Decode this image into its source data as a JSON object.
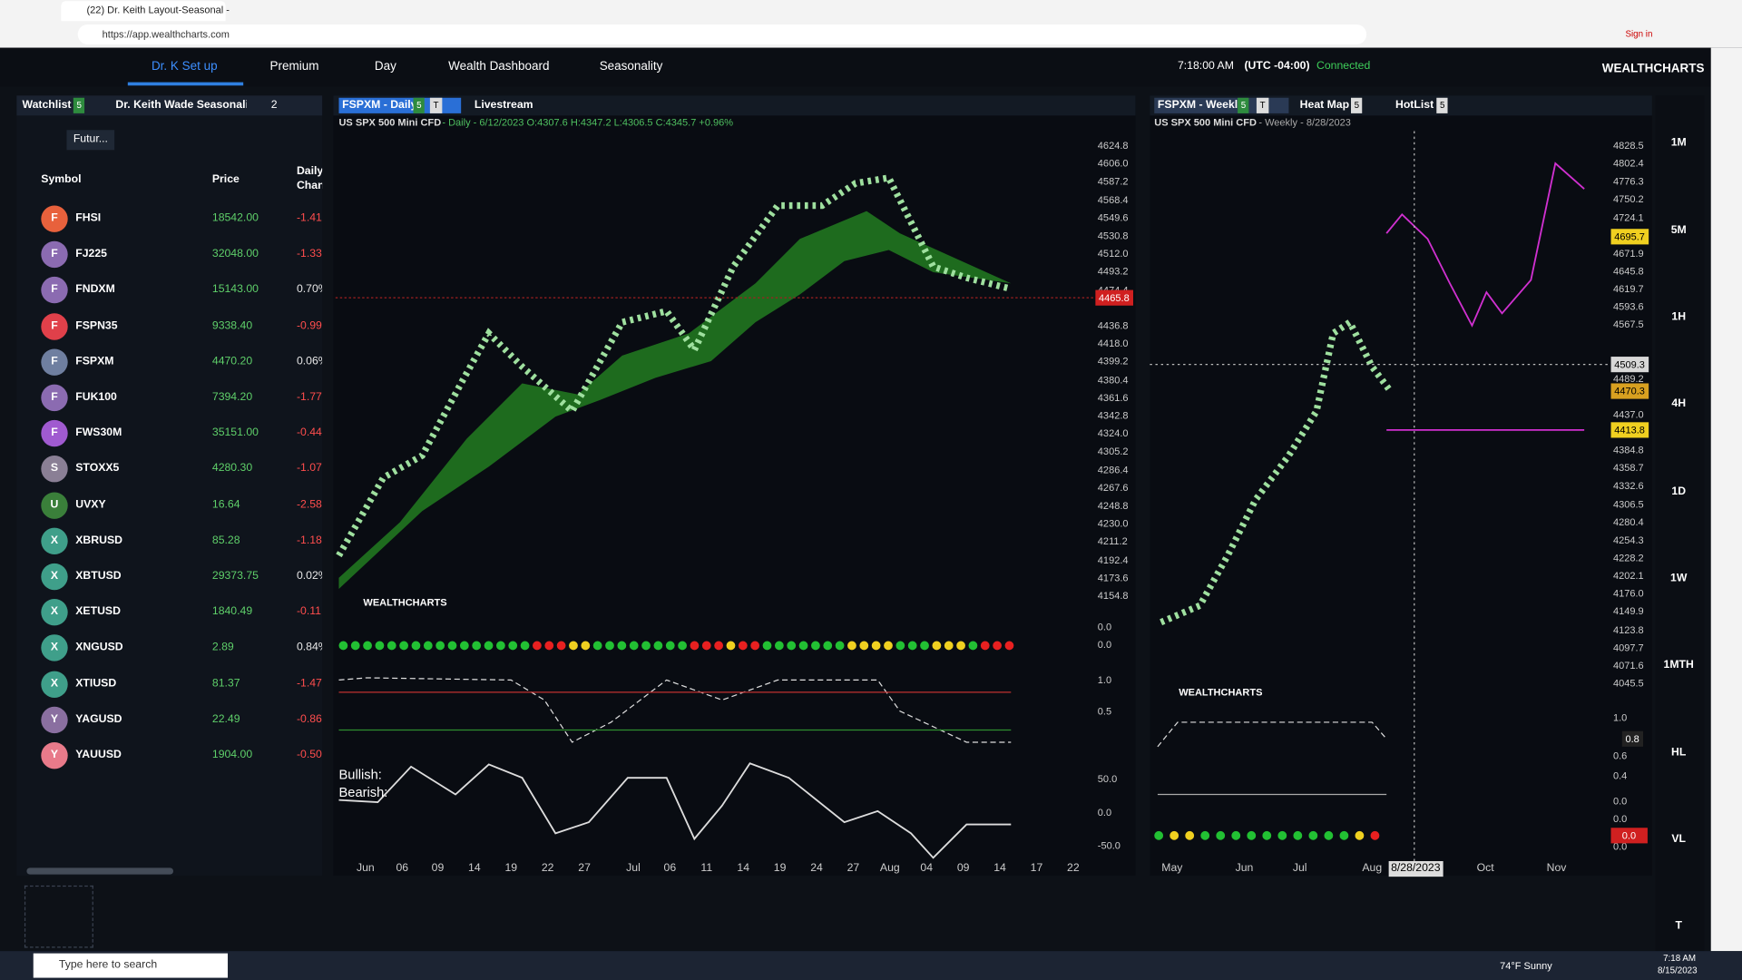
{
  "browser": {
    "tab_title": "(22) Dr. Keith Layout-Seasonal -",
    "url": "https://app.wealthcharts.com",
    "sign_in": "Sign in"
  },
  "nav": {
    "tabs": [
      "Dr. K Set up",
      "Premium",
      "Day",
      "Wealth Dashboard",
      "Seasonality"
    ],
    "time": "7:18:00 AM",
    "timezone": "(UTC -04:00)",
    "status": "Connected",
    "brand": "WEALTHCHARTS"
  },
  "watchlist": {
    "tab": "Watchlist",
    "tab_badge": "5",
    "layout_tab": "Dr. Keith Wade Seasonality S",
    "layout_count": "2",
    "filter": "Futur...",
    "columns": [
      "Symbol",
      "Price",
      "Daily Chan"
    ],
    "rows": [
      {
        "icon": "F",
        "symbol": "FHSI",
        "price": "18542.00",
        "change": "-1.41"
      },
      {
        "icon": "F",
        "symbol": "FJ225",
        "price": "32048.00",
        "change": "-1.33"
      },
      {
        "icon": "F",
        "symbol": "FNDXM",
        "price": "15143.00",
        "change": "0.70%"
      },
      {
        "icon": "F",
        "symbol": "FSPN35",
        "price": "9338.40",
        "change": "-0.99"
      },
      {
        "icon": "F",
        "symbol": "FSPXM",
        "price": "4470.20",
        "change": "0.06%"
      },
      {
        "icon": "F",
        "symbol": "FUK100",
        "price": "7394.20",
        "change": "-1.77"
      },
      {
        "icon": "F",
        "symbol": "FWS30M",
        "price": "35151.00",
        "change": "-0.44"
      },
      {
        "icon": "S",
        "symbol": "STOXX5",
        "price": "4280.30",
        "change": "-1.07"
      },
      {
        "icon": "U",
        "symbol": "UVXY",
        "price": "16.64",
        "change": "-2.58"
      },
      {
        "icon": "X",
        "symbol": "XBRUSD",
        "price": "85.28",
        "change": "-1.18"
      },
      {
        "icon": "X",
        "symbol": "XBTUSD",
        "price": "29373.75",
        "change": "0.02%"
      },
      {
        "icon": "X",
        "symbol": "XETUSD",
        "price": "1840.49",
        "change": "-0.11"
      },
      {
        "icon": "X",
        "symbol": "XNGUSD",
        "price": "2.89",
        "change": "0.84%"
      },
      {
        "icon": "X",
        "symbol": "XTIUSD",
        "price": "81.37",
        "change": "-1.47"
      },
      {
        "icon": "Y",
        "symbol": "YAGUSD",
        "price": "22.49",
        "change": "-0.86"
      },
      {
        "icon": "Y",
        "symbol": "YAUUSD",
        "price": "1904.00",
        "change": "-0.50"
      }
    ]
  },
  "daily_chart": {
    "tab": "FSPXM - Daily",
    "tab_badges": [
      "5",
      "T"
    ],
    "second_tab": "Livestream",
    "instrument": "US SPX 500 Mini CFD",
    "info": "- Daily - 6/12/2023 O:4307.6 H:4347.2 L:4306.5 C:4345.7 +0.96%",
    "price_ticks": [
      "4624.8",
      "4606.0",
      "4587.2",
      "4568.4",
      "4549.6",
      "4530.8",
      "4512.0",
      "4493.2",
      "4474.4",
      "4436.8",
      "4418.0",
      "4399.2",
      "4380.4",
      "4361.6",
      "4342.8",
      "4324.0",
      "4305.2",
      "4286.4",
      "4267.6",
      "4248.8",
      "4230.0",
      "4211.2",
      "4192.4",
      "4173.6",
      "4154.8"
    ],
    "last_price": "4465.8",
    "indicator_ticks": [
      "0.0",
      "0.0",
      "1.0",
      "0.5",
      "50.0",
      "0.0",
      "-50.0"
    ],
    "dates": [
      "Jun",
      "06",
      "09",
      "14",
      "19",
      "22",
      "27",
      "Jul",
      "06",
      "11",
      "14",
      "19",
      "24",
      "27",
      "Aug",
      "04",
      "09",
      "14",
      "17",
      "22"
    ],
    "watermark": "WEALTHCHARTS",
    "legend": [
      "Bullish:",
      "Bearish:"
    ]
  },
  "weekly_chart": {
    "tab": "FSPXM - Weekly",
    "tab_badges": [
      "5",
      "T"
    ],
    "other_tabs": [
      "Heat Map",
      "HotList"
    ],
    "other_tab_badges": [
      "5",
      "5"
    ],
    "instrument": "US SPX 500 Mini CFD",
    "info": "- Weekly - 8/28/2023",
    "price_ticks": [
      "4828.5",
      "4802.4",
      "4776.3",
      "4750.2",
      "4724.1",
      "4671.9",
      "4645.8",
      "4619.7",
      "4593.6",
      "4567.5",
      "4489.2",
      "4437.0",
      "4384.8",
      "4358.7",
      "4332.6",
      "4306.5",
      "4280.4",
      "4254.3",
      "4228.2",
      "4202.1",
      "4176.0",
      "4149.9",
      "4123.8",
      "4097.7",
      "4071.6",
      "4045.5"
    ],
    "price_markers": [
      "4695.7",
      "4509.3",
      "4470.3",
      "4413.8"
    ],
    "indicator_ticks": [
      "1.0",
      "0.6",
      "0.4",
      "0.0",
      "0.0",
      "0.0"
    ],
    "indicator_markers": [
      "0.8",
      "0.0"
    ],
    "dates": [
      "May",
      "Jun",
      "Jul",
      "Aug",
      "Oct",
      "Nov"
    ],
    "cursor_date": "8/28/2023",
    "watermark": "WEALTHCHARTS"
  },
  "intervals": [
    "1M",
    "5M",
    "1H",
    "4H",
    "1D",
    "1W",
    "1MTH",
    "HL",
    "VL",
    "T"
  ],
  "taskbar": {
    "search": "Type here to search",
    "weather": "74°F Sunny",
    "time": "7:18 AM",
    "date": "8/15/2023"
  }
}
